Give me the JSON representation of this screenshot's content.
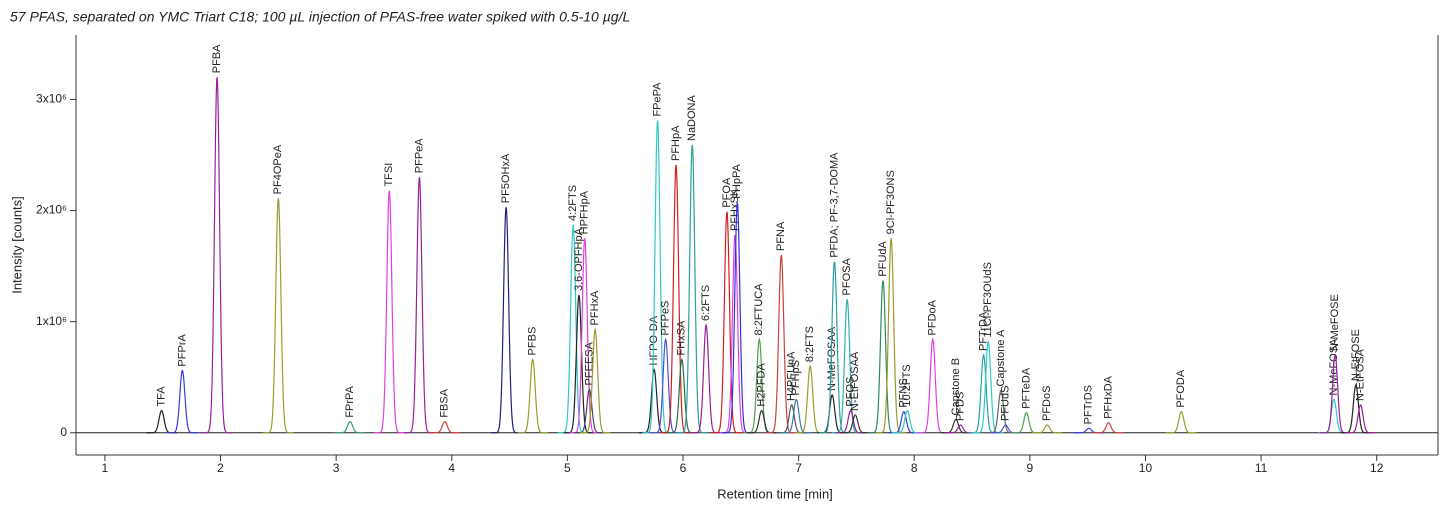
{
  "chart_data": {
    "type": "chromatogram",
    "title": "57 PFAS, separated on YMC Triart C18; 100 µL injection of PFAS-free water spiked with 0.5-10 µg/L",
    "x_label": "Retention time [min]",
    "y_label": "Intensity [counts]",
    "xlim": [
      0.75,
      12.53
    ],
    "xticks": [
      1,
      2,
      3,
      4,
      5,
      6,
      7,
      8,
      9,
      10,
      11,
      12
    ],
    "ylim": [
      -200000,
      3580000
    ],
    "yticks": [
      0,
      {
        "value": 1000000,
        "label": "1x10⁶"
      },
      {
        "value": 2000000,
        "label": "2x10⁶"
      },
      {
        "value": 3000000,
        "label": "3x10⁶"
      }
    ],
    "peaks": [
      {
        "name": "TFA",
        "rt": 1.49,
        "height": 200000,
        "color": "#222222"
      },
      {
        "name": "PFPrA",
        "rt": 1.67,
        "height": 560000,
        "color": "#3a3ad6"
      },
      {
        "name": "PFBA",
        "rt": 1.97,
        "height": 3200000,
        "color": "#9b1f9b"
      },
      {
        "name": "PF4OPeA",
        "rt": 2.5,
        "height": 2110000,
        "color": "#9a9a30"
      },
      {
        "name": "FPrPA",
        "rt": 3.12,
        "height": 100000,
        "color": "#3a9a7a"
      },
      {
        "name": "TFSI",
        "rt": 3.46,
        "height": 2180000,
        "color": "#e040e0"
      },
      {
        "name": "PFPeA",
        "rt": 3.72,
        "height": 2300000,
        "color": "#9b1f9b"
      },
      {
        "name": "FBSA",
        "rt": 3.94,
        "height": 100000,
        "color": "#d04040"
      },
      {
        "name": "PF5OHxA",
        "rt": 4.47,
        "height": 2030000,
        "color": "#20207a"
      },
      {
        "name": "PFBS",
        "rt": 4.7,
        "height": 660000,
        "color": "#9a9a30"
      },
      {
        "name": "4:2FTS",
        "rt": 5.05,
        "height": 1870000,
        "color": "#30c8c8"
      },
      {
        "name": "3,6-OPFHpA",
        "rt": 5.1,
        "height": 1240000,
        "color": "#222222"
      },
      {
        "name": "HPFHpA",
        "rt": 5.15,
        "height": 1750000,
        "color": "#e040e0"
      },
      {
        "name": "PFEESA",
        "rt": 5.19,
        "height": 390000,
        "color": "#444466"
      },
      {
        "name": "PFHxA",
        "rt": 5.24,
        "height": 930000,
        "color": "#9a9a30"
      },
      {
        "name": "HFPO-DA",
        "rt": 5.75,
        "height": 570000,
        "color": "#222222"
      },
      {
        "name": "FPePA",
        "rt": 5.78,
        "height": 2810000,
        "color": "#30c8c8"
      },
      {
        "name": "PFPeS",
        "rt": 5.85,
        "height": 840000,
        "color": "#5050d0"
      },
      {
        "name": "PFHpA",
        "rt": 5.94,
        "height": 2410000,
        "color": "#d02020"
      },
      {
        "name": "FHxSA",
        "rt": 5.99,
        "height": 660000,
        "color": "#2a6a4a"
      },
      {
        "name": "NaDONA",
        "rt": 6.08,
        "height": 2590000,
        "color": "#2aa0a0"
      },
      {
        "name": "6:2FTS",
        "rt": 6.2,
        "height": 970000,
        "color": "#9b1f9b"
      },
      {
        "name": "PFOA",
        "rt": 6.38,
        "height": 1990000,
        "color": "#d02020"
      },
      {
        "name": "PFHxSK",
        "rt": 6.45,
        "height": 1780000,
        "color": "#e040e0"
      },
      {
        "name": "FHpPA",
        "rt": 6.47,
        "height": 2070000,
        "color": "#3030e0"
      },
      {
        "name": "8:2FTUCA",
        "rt": 6.66,
        "height": 840000,
        "color": "#50a050"
      },
      {
        "name": "H2PFDA",
        "rt": 6.68,
        "height": 200000,
        "color": "#333333"
      },
      {
        "name": "PFNA",
        "rt": 6.85,
        "height": 1600000,
        "color": "#d04040"
      },
      {
        "name": "H4PFUnA",
        "rt": 6.94,
        "height": 250000,
        "color": "#555555"
      },
      {
        "name": "PFHpS",
        "rt": 6.98,
        "height": 300000,
        "color": "#3a7aa0"
      },
      {
        "name": "8:2FTS",
        "rt": 7.1,
        "height": 600000,
        "color": "#9a9a30"
      },
      {
        "name": "N-MeFOSAA",
        "rt": 7.29,
        "height": 340000,
        "color": "#222222"
      },
      {
        "name": "PFDA; PF-3,7-DOMA",
        "rt": 7.31,
        "height": 1540000,
        "color": "#2aa0a0"
      },
      {
        "name": "PFOSA",
        "rt": 7.42,
        "height": 1200000,
        "color": "#30b0b0"
      },
      {
        "name": "PFOS",
        "rt": 7.45,
        "height": 200000,
        "color": "#9b1f9b"
      },
      {
        "name": "N-EtFOSAA",
        "rt": 7.49,
        "height": 160000,
        "color": "#333333"
      },
      {
        "name": "PFUdA",
        "rt": 7.73,
        "height": 1370000,
        "color": "#2a8a6a"
      },
      {
        "name": "9Cl-PF3ONS",
        "rt": 7.8,
        "height": 1750000,
        "color": "#9a9a30"
      },
      {
        "name": "PFNS",
        "rt": 7.91,
        "height": 190000,
        "color": "#3a3ad6"
      },
      {
        "name": "10:2FTS",
        "rt": 7.94,
        "height": 200000,
        "color": "#30c8c8"
      },
      {
        "name": "PFDoA",
        "rt": 8.16,
        "height": 840000,
        "color": "#e040e0"
      },
      {
        "name": "Capstone B",
        "rt": 8.36,
        "height": 120000,
        "color": "#333333"
      },
      {
        "name": "PFDS",
        "rt": 8.4,
        "height": 70000,
        "color": "#9b1f9b"
      },
      {
        "name": "PFTrDA",
        "rt": 8.6,
        "height": 700000,
        "color": "#2aa0a0"
      },
      {
        "name": "11Cl-PF3OUdS",
        "rt": 8.64,
        "height": 820000,
        "color": "#30c8c8"
      },
      {
        "name": "Capstone A",
        "rt": 8.75,
        "height": 380000,
        "color": "#666666"
      },
      {
        "name": "PFUdS",
        "rt": 8.79,
        "height": 70000,
        "color": "#5050d0"
      },
      {
        "name": "PFTeDA",
        "rt": 8.97,
        "height": 180000,
        "color": "#50a050"
      },
      {
        "name": "PFDoS",
        "rt": 9.15,
        "height": 70000,
        "color": "#9a9a30"
      },
      {
        "name": "PFTrDS",
        "rt": 9.51,
        "height": 40000,
        "color": "#3a3ad6"
      },
      {
        "name": "PFHxDA",
        "rt": 9.68,
        "height": 90000,
        "color": "#d04040"
      },
      {
        "name": "PFODA",
        "rt": 10.31,
        "height": 190000,
        "color": "#9a9a30"
      },
      {
        "name": "N-MeFOSA",
        "rt": 11.63,
        "height": 300000,
        "color": "#30c8c8"
      },
      {
        "name": "N-MeFOSE",
        "rt": 11.64,
        "height": 700000,
        "color": "#9b1f9b"
      },
      {
        "name": "N-EtFOSE",
        "rt": 11.82,
        "height": 430000,
        "color": "#222222"
      },
      {
        "name": "N-EtFOSA",
        "rt": 11.86,
        "height": 250000,
        "color": "#9b1f9b"
      }
    ]
  }
}
